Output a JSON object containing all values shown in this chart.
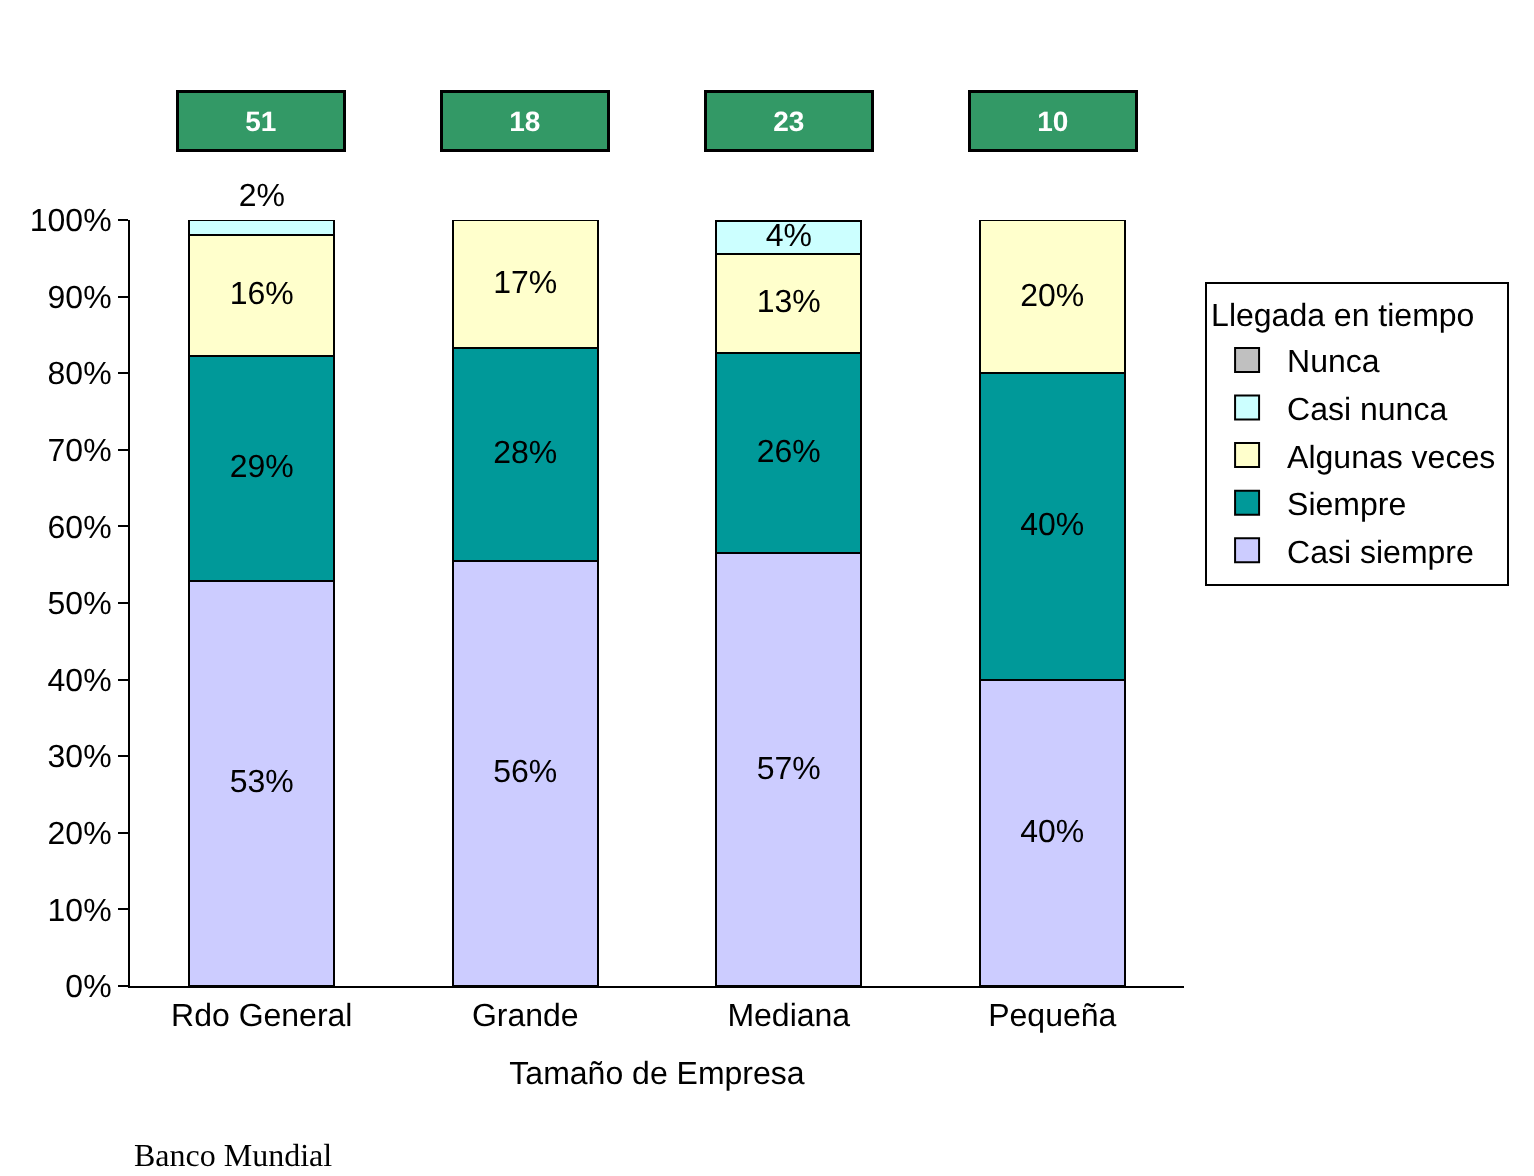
{
  "chart_data": {
    "type": "bar",
    "stacked": true,
    "xlabel": "Tamaño de Empresa",
    "legend_title": "Llegada en tiempo",
    "legend": "right",
    "categories": [
      "Rdo General",
      "Grande",
      "Mediana",
      "Pequeña"
    ],
    "ylim": [
      0,
      100
    ],
    "yticks": [
      {
        "value": 0,
        "label": "0%"
      },
      {
        "value": 10,
        "label": "10%"
      },
      {
        "value": 20,
        "label": "20%"
      },
      {
        "value": 30,
        "label": "30%"
      },
      {
        "value": 40,
        "label": "40%"
      },
      {
        "value": 50,
        "label": "50%"
      },
      {
        "value": 60,
        "label": "60%"
      },
      {
        "value": 70,
        "label": "70%"
      },
      {
        "value": 80,
        "label": "80%"
      },
      {
        "value": 90,
        "label": "90%"
      },
      {
        "value": 100,
        "label": "100%"
      }
    ],
    "series": [
      {
        "name": "Casi siempre",
        "color": "#ccccff",
        "values": [
          52.9,
          55.5,
          56.5,
          40
        ],
        "value_labels": [
          "53%",
          "56%",
          "57%",
          "40%"
        ]
      },
      {
        "name": "Siempre",
        "color": "#009999",
        "values": [
          29.4,
          27.8,
          26.1,
          40
        ],
        "value_labels": [
          "29%",
          "28%",
          "26%",
          "40%"
        ]
      },
      {
        "name": "Algunas veces",
        "color": "#ffffcc",
        "values": [
          15.7,
          16.7,
          13.0,
          20
        ],
        "value_labels": [
          "16%",
          "17%",
          "13%",
          "20%"
        ]
      },
      {
        "name": "Casi nunca",
        "color": "#ccffff",
        "values": [
          2.0,
          null,
          4.3,
          null
        ],
        "value_labels": [
          "2%",
          null,
          "4%",
          null
        ]
      },
      {
        "name": "Nunca",
        "color": "#c0c0c0",
        "values": [
          null,
          null,
          null,
          null
        ],
        "value_labels": [
          null,
          null,
          null,
          null
        ]
      }
    ],
    "annotations": [
      "51",
      "18",
      "23",
      "10",
      "Banco Mundial"
    ]
  }
}
